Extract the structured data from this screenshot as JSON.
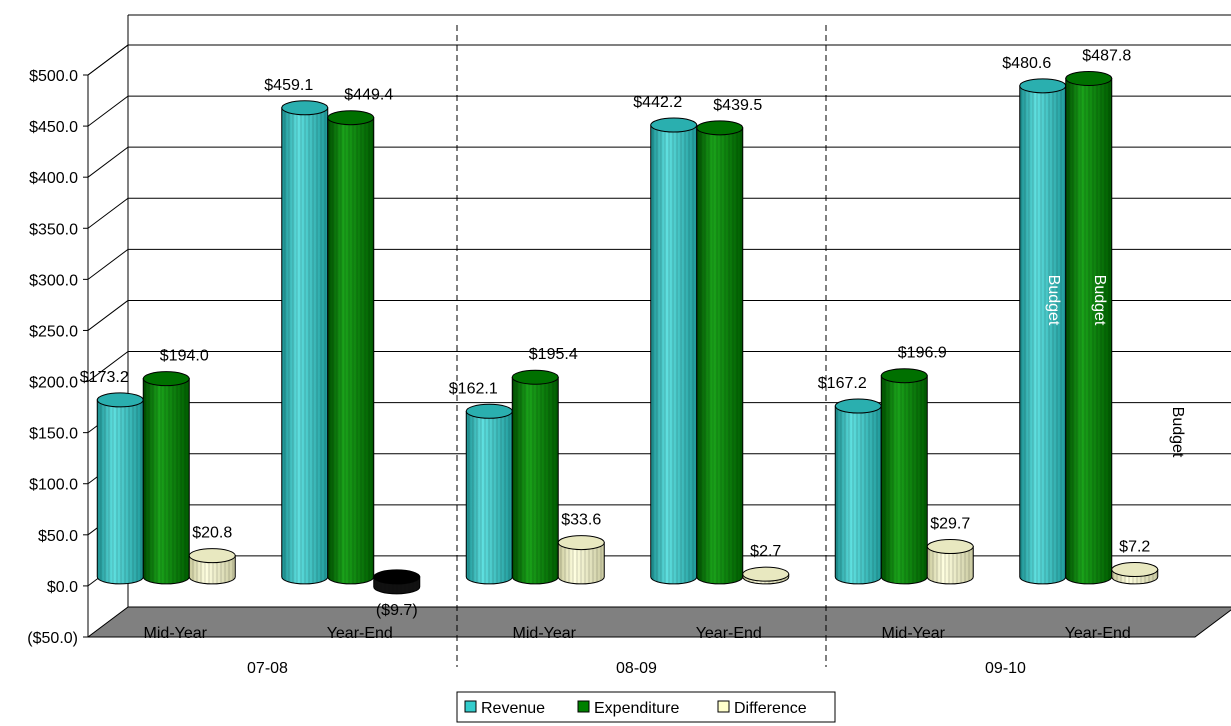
{
  "chart_data": {
    "type": "bar",
    "categories": [
      "Mid-Year",
      "Year-End",
      "Mid-Year",
      "Year-End",
      "Mid-Year",
      "Year-End"
    ],
    "groups": [
      {
        "label": "07-08",
        "categories": [
          "Mid-Year",
          "Year-End"
        ]
      },
      {
        "label": "08-09",
        "categories": [
          "Mid-Year",
          "Year-End"
        ]
      },
      {
        "label": "09-10",
        "categories": [
          "Mid-Year",
          "Year-End"
        ]
      }
    ],
    "series": [
      {
        "name": "Revenue",
        "color": "#33cccc",
        "values": [
          173.2,
          459.1,
          162.1,
          442.2,
          167.2,
          480.6
        ]
      },
      {
        "name": "Expenditure",
        "color": "#008000",
        "values": [
          194.0,
          449.4,
          195.4,
          439.5,
          196.9,
          487.8
        ]
      },
      {
        "name": "Difference",
        "color": "#ffffcc",
        "values": [
          20.8,
          -9.7,
          33.6,
          2.7,
          29.7,
          7.2
        ]
      }
    ],
    "data_labels": [
      [
        "$173.2",
        "$459.1",
        "$162.1",
        "$442.2",
        "$167.2",
        "$480.6"
      ],
      [
        "$194.0",
        "$449.4",
        "$195.4",
        "$439.5",
        "$196.9",
        "$487.8"
      ],
      [
        "$20.8",
        "($9.7)",
        "$33.6",
        "$2.7",
        "$29.7",
        "$7.2"
      ]
    ],
    "y_ticks": [
      "($50.0)",
      "$0.0",
      "$50.0",
      "$100.0",
      "$150.0",
      "$200.0",
      "$250.0",
      "$300.0",
      "$350.0",
      "$400.0",
      "$450.0",
      "$500.0"
    ],
    "ylim": [
      -50,
      500
    ],
    "y_step": 50,
    "annotations": [
      {
        "text": "Budget",
        "series": "Revenue",
        "category_index": 5
      },
      {
        "text": "Budget",
        "series": "Expenditure",
        "category_index": 5
      },
      {
        "text": "Budget",
        "series": "Difference",
        "category_index": 5
      }
    ],
    "legend": {
      "position": "bottom",
      "entries": [
        "Revenue",
        "Expenditure",
        "Difference"
      ]
    },
    "grid": true,
    "floor_color": "#808080"
  }
}
